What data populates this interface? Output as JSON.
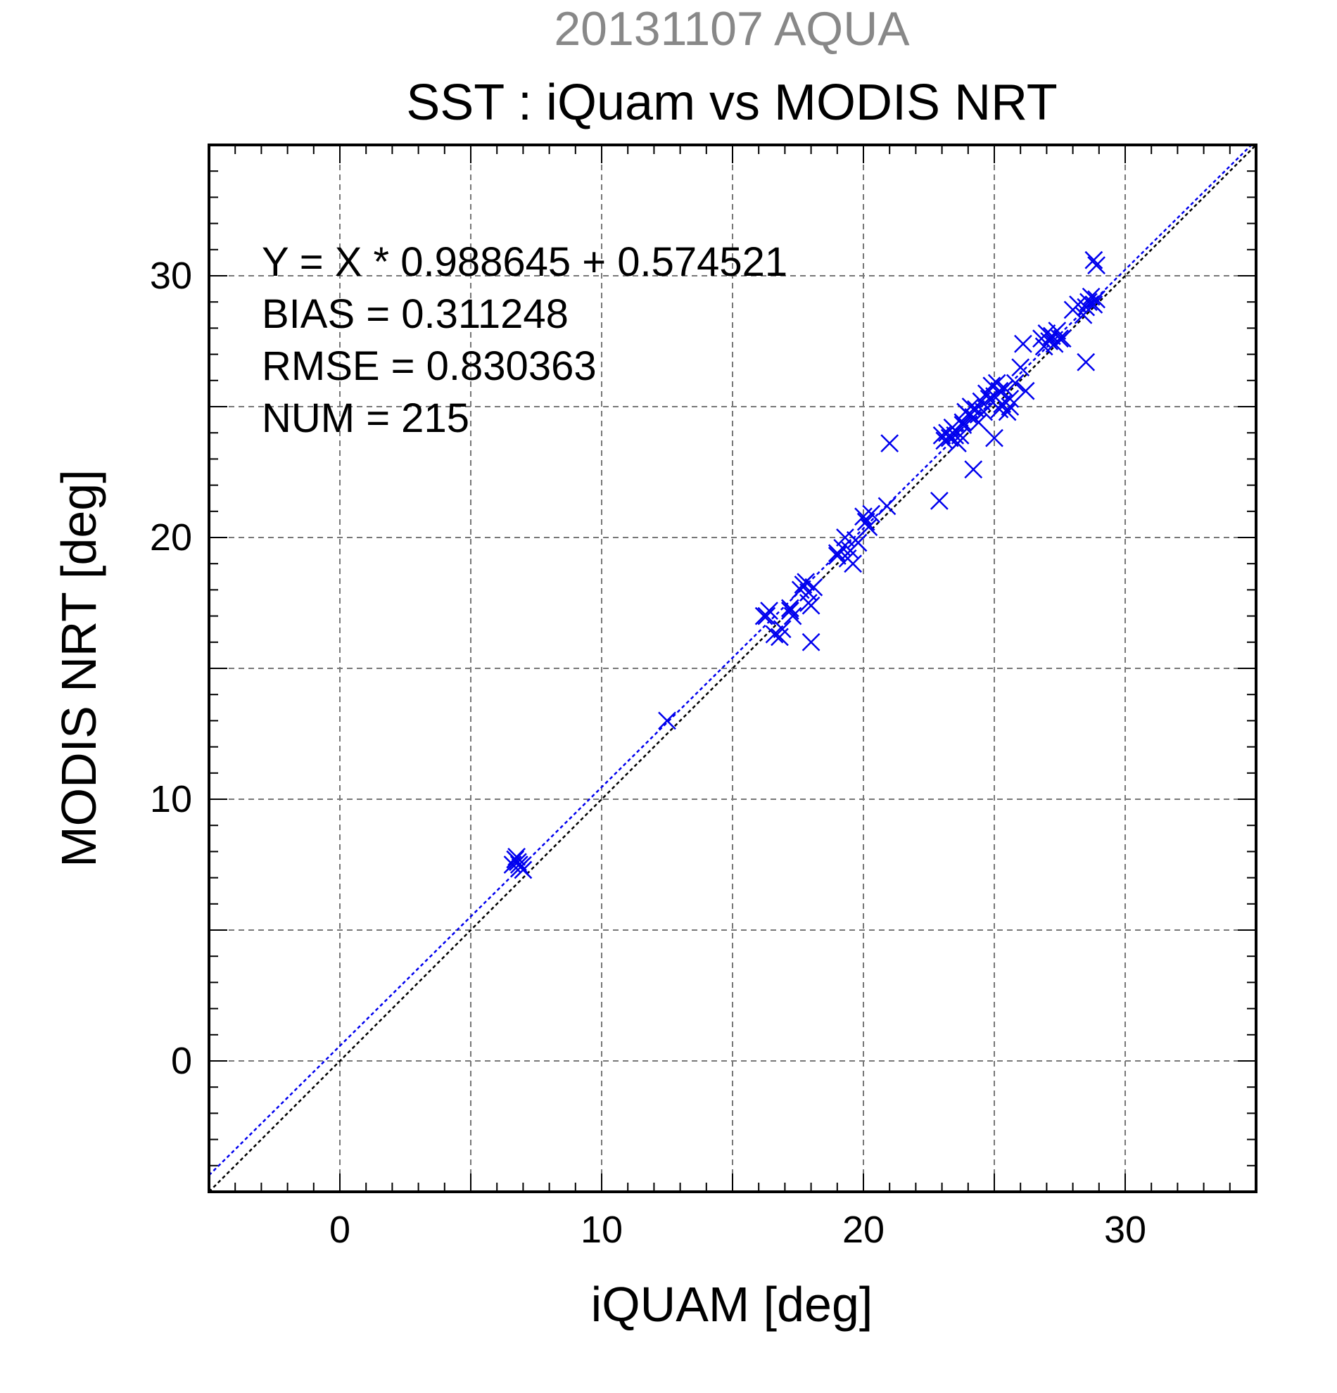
{
  "chart_data": {
    "type": "scatter",
    "suptitle": "20131107 AQUA",
    "title": "SST : iQuam vs MODIS NRT",
    "xlabel": "iQUAM [deg]",
    "ylabel": "MODIS NRT [deg]",
    "xlim": [
      -5,
      35
    ],
    "ylim": [
      -5,
      35
    ],
    "xticks": [
      "0",
      "10",
      "20",
      "30"
    ],
    "yticks": [
      "0",
      "10",
      "20",
      "30"
    ],
    "grid": true,
    "stats": [
      "Y = X * 0.988645 + 0.574521",
      "BIAS = 0.311248",
      "RMSE = 0.830363",
      "NUM = 215"
    ],
    "fit": {
      "slope": 0.988645,
      "intercept": 0.574521,
      "color": "#0000ee"
    },
    "identity_line_color": "#000000",
    "marker": "x",
    "marker_color": "#0000ee",
    "x": [
      6.6,
      6.7,
      6.8,
      6.9,
      7.0,
      6.75,
      6.85,
      12.5,
      16.2,
      16.4,
      16.3,
      16.6,
      16.8,
      17.2,
      17.3,
      17.6,
      17.7,
      17.8,
      17.9,
      18.0,
      18.1,
      19.0,
      19.2,
      19.3,
      19.4,
      19.5,
      19.6,
      19.7,
      19.8,
      20.0,
      20.1,
      20.2,
      20.3,
      20.9,
      21.0,
      23.0,
      23.1,
      23.2,
      23.3,
      23.4,
      23.5,
      23.6,
      23.7,
      23.8,
      23.9,
      24.0,
      24.1,
      24.2,
      24.3,
      24.5,
      24.6,
      24.7,
      24.8,
      24.9,
      25.0,
      25.1,
      25.2,
      25.3,
      25.4,
      25.5,
      25.6,
      25.8,
      26.0,
      26.1,
      26.8,
      26.9,
      27.0,
      27.1,
      27.2,
      27.3,
      27.4,
      27.5,
      27.6,
      28.0,
      28.2,
      28.4,
      28.5,
      28.6,
      28.7,
      28.8,
      28.9,
      28.9,
      28.8,
      28.5,
      25.0,
      24.2,
      26.2,
      23.5,
      22.9,
      23.8,
      25.2,
      25.6,
      24.4,
      19.0,
      18.0,
      16.9,
      17.9,
      17.2
    ],
    "y": [
      7.5,
      7.7,
      7.6,
      7.4,
      7.3,
      7.8,
      7.5,
      13.0,
      17.0,
      17.2,
      17.0,
      16.3,
      16.2,
      17.3,
      17.0,
      18.0,
      18.2,
      18.3,
      17.9,
      17.4,
      18.1,
      19.3,
      19.6,
      20.0,
      19.2,
      19.5,
      19.0,
      19.9,
      19.8,
      20.8,
      20.6,
      20.4,
      20.9,
      21.2,
      23.6,
      23.9,
      23.7,
      24.0,
      23.8,
      24.2,
      24.1,
      23.6,
      23.9,
      24.4,
      24.8,
      24.7,
      25.0,
      24.6,
      24.9,
      25.2,
      24.8,
      25.5,
      25.3,
      25.8,
      25.4,
      25.9,
      25.6,
      25.1,
      25.7,
      24.8,
      25.3,
      25.9,
      26.5,
      27.4,
      27.6,
      27.3,
      27.8,
      27.5,
      27.7,
      27.4,
      27.9,
      27.6,
      27.6,
      28.7,
      28.9,
      28.5,
      28.8,
      29.0,
      29.2,
      28.9,
      29.1,
      30.4,
      30.6,
      26.7,
      23.8,
      22.6,
      25.6,
      23.9,
      21.4,
      24.3,
      24.9,
      25.0,
      24.4,
      19.4,
      16.0,
      16.5,
      17.5,
      17.2
    ]
  }
}
